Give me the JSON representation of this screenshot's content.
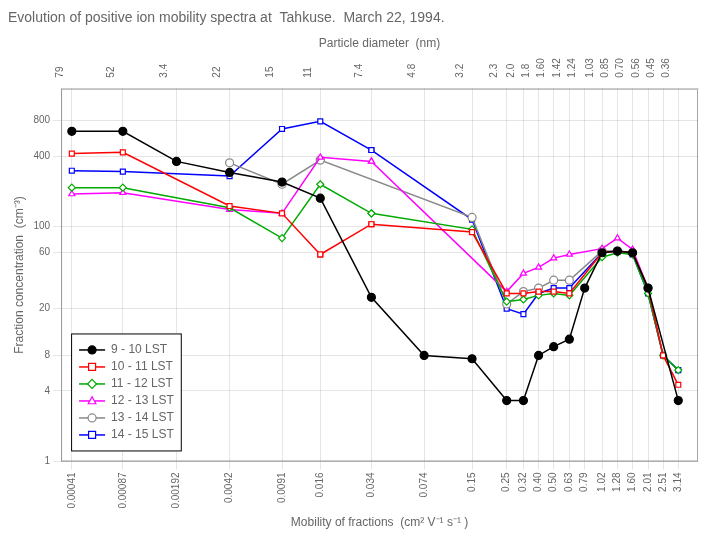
{
  "chart_data": {
    "type": "line",
    "title": "Evolution of positive ion mobility spectra at  Tahkuse.  March 22, 1994.",
    "xlabel": "Mobility of fractions  (cm² V⁻¹ s⁻¹ )",
    "ylabel": "Fraction concentration  (cm⁻³)",
    "x2label": "Particle diameter  (nm)",
    "log": true,
    "grid": true,
    "legend": "lower left",
    "xlim": [
      0.00035,
      4.2
    ],
    "ylim": [
      1,
      1500
    ],
    "x2lim": [
      0.00035,
      4.2
    ],
    "xticks": [
      0.00041,
      0.00087,
      0.00192,
      0.0042,
      0.0091,
      0.016,
      0.034,
      0.074,
      0.15,
      0.25,
      0.32,
      {
        "value": 0.4,
        "label": "0.40"
      },
      {
        "value": 0.5,
        "label": "0.50"
      },
      0.63,
      0.79,
      1.02,
      1.28,
      {
        "value": 1.6,
        "label": "1.60"
      },
      2.01,
      2.51,
      3.14
    ],
    "x2ticks": [
      {
        "value": 0.00041,
        "label": "79"
      },
      {
        "value": 0.00087,
        "label": "52"
      },
      {
        "value": 0.00192,
        "label": "3.4"
      },
      {
        "value": 0.0042,
        "label": "22"
      },
      {
        "value": 0.0091,
        "label": "15"
      },
      {
        "value": 0.016,
        "label": "11"
      },
      {
        "value": 0.034,
        "label": "7.4"
      },
      {
        "value": 0.074,
        "label": "4.8"
      },
      {
        "value": 0.15,
        "label": "3.2"
      },
      {
        "value": 0.25,
        "label": "2.3"
      },
      {
        "value": 0.32,
        "label": "2.0"
      },
      {
        "value": 0.4,
        "label": "1.8"
      },
      {
        "value": 0.5,
        "label": "1.60"
      },
      {
        "value": 0.63,
        "label": "1.42"
      },
      {
        "value": 0.79,
        "label": "1.24"
      },
      {
        "value": 1.02,
        "label": "1.03"
      },
      {
        "value": 1.28,
        "label": "0.85"
      },
      {
        "value": 1.6,
        "label": "0.70"
      },
      {
        "value": 2.01,
        "label": "0.56"
      },
      {
        "value": 2.51,
        "label": "0.45"
      },
      {
        "value": 3.14,
        "label": "0.36"
      }
    ],
    "yticks": [
      1,
      4,
      8,
      20,
      60,
      100,
      400,
      800
    ],
    "series": [
      {
        "name": "9 - 10 LST",
        "color": "#000000",
        "marker": "filled circle",
        "x": [
          0.00041,
          0.00087,
          0.00192,
          0.0042,
          0.0091,
          0.016,
          0.034,
          0.074,
          0.15,
          0.25,
          0.32,
          0.4,
          0.5,
          0.63,
          0.79,
          1.02,
          1.28,
          1.6,
          2.01,
          3.14
        ],
        "values": [
          650,
          650,
          360,
          290,
          240,
          175,
          25,
          8,
          7.5,
          3.3,
          3.3,
          8,
          9.5,
          11,
          30,
          60,
          62,
          60,
          30,
          3.3
        ]
      },
      {
        "name": "10 - 11 LST",
        "color": "#ff0000",
        "marker": "open square",
        "x": [
          0.00041,
          0.00087,
          0.0042,
          0.0091,
          0.016,
          0.016,
          0.034,
          0.034,
          0.15,
          0.25,
          0.32,
          0.4,
          0.5,
          0.63,
          1.02,
          1.28,
          1.6,
          2.01,
          2.51,
          3.14
        ],
        "values": [
          420,
          430,
          150,
          130,
          58,
          58,
          105,
          105,
          90,
          27,
          27,
          28,
          28,
          27,
          60,
          62,
          60,
          30,
          8,
          4.5
        ]
      },
      {
        "name": "11 - 12 LST",
        "color": "#00aa00",
        "marker": "open diamond",
        "x": [
          0.00041,
          0.00087,
          0.0042,
          0.0091,
          0.016,
          0.034,
          0.034,
          0.15,
          0.25,
          0.32,
          0.4,
          0.5,
          0.63,
          1.02,
          1.28,
          1.6,
          2.01,
          2.51,
          3.14
        ],
        "values": [
          215,
          215,
          145,
          80,
          230,
          130,
          130,
          95,
          23,
          24,
          26,
          27,
          26,
          55,
          60,
          58,
          27,
          8,
          6
        ]
      },
      {
        "name": "12 - 13 LST",
        "color": "#ff00ff",
        "marker": "open triangle",
        "x": [
          0.00041,
          0.00087,
          0.0042,
          0.0091,
          0.016,
          0.034,
          0.034,
          0.25,
          0.32,
          0.4,
          0.5,
          0.63,
          1.02,
          1.28,
          1.6,
          2.01
        ],
        "values": [
          190,
          195,
          140,
          130,
          390,
          360,
          360,
          28,
          40,
          45,
          54,
          58,
          65,
          80,
          64,
          30
        ]
      },
      {
        "name": "13 - 14 LST",
        "color": "#888888",
        "marker": "open circle",
        "x": [
          0.0042,
          0.0091,
          0.016,
          0.016,
          0.15,
          0.25,
          0.32,
          0.4,
          0.5,
          0.63,
          1.02,
          1.28,
          1.6,
          2.01
        ],
        "values": [
          350,
          230,
          370,
          370,
          120,
          22,
          28,
          30,
          35,
          35,
          62,
          62,
          60,
          30
        ]
      },
      {
        "name": "14 - 15 LST",
        "color": "#0000ff",
        "marker": "open square",
        "x": [
          0.00041,
          0.00087,
          0.0042,
          0.0091,
          0.016,
          0.034,
          0.034,
          0.15,
          0.25,
          0.32,
          0.4,
          0.5,
          0.63,
          1.02,
          1.28,
          1.6,
          2.01,
          2.51,
          3.14
        ],
        "values": [
          300,
          295,
          270,
          680,
          790,
          450,
          450,
          115,
          20,
          18,
          27,
          30,
          30,
          60,
          62,
          58,
          27,
          8,
          6
        ]
      }
    ]
  }
}
